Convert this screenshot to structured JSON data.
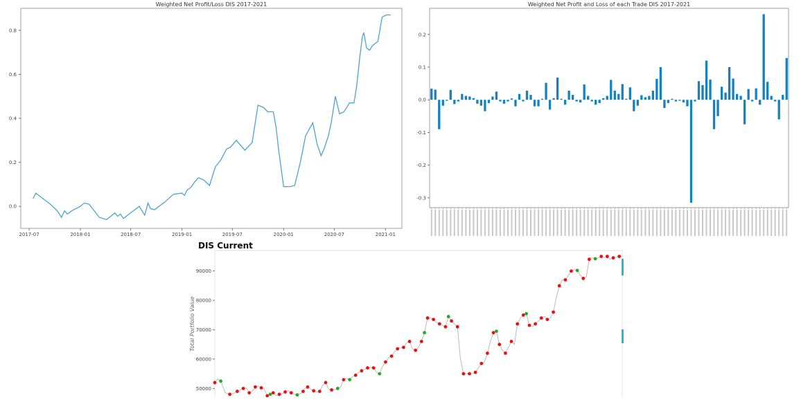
{
  "chart_data": [
    {
      "type": "line",
      "title": "Weighted Net Profit/Loss DIS 2017-2021",
      "xlabel": "",
      "ylabel": "",
      "x_ticks": [
        "2017-07",
        "2018-01",
        "2018-07",
        "2019-01",
        "2019-07",
        "2020-01",
        "2020-07",
        "2021-01"
      ],
      "y_ticks": [
        "0.0",
        "0.2",
        "0.4",
        "0.6",
        "0.8"
      ],
      "ylim": [
        -0.1,
        0.9
      ],
      "x": [
        "2017-07-15",
        "2017-07-25",
        "2017-08-15",
        "2017-09-15",
        "2017-10-10",
        "2017-10-25",
        "2017-11-05",
        "2017-11-15",
        "2017-12-01",
        "2018-01-01",
        "2018-01-15",
        "2018-02-01",
        "2018-02-20",
        "2018-03-10",
        "2018-04-05",
        "2018-04-20",
        "2018-05-05",
        "2018-05-15",
        "2018-05-25",
        "2018-06-05",
        "2018-06-20",
        "2018-07-10",
        "2018-08-01",
        "2018-08-20",
        "2018-09-01",
        "2018-09-10",
        "2018-09-25",
        "2018-10-10",
        "2018-11-01",
        "2018-12-01",
        "2019-01-01",
        "2019-01-10",
        "2019-01-20",
        "2019-02-01",
        "2019-02-15",
        "2019-03-01",
        "2019-03-20",
        "2019-04-10",
        "2019-05-01",
        "2019-05-20",
        "2019-06-10",
        "2019-06-25",
        "2019-07-15",
        "2019-08-15",
        "2019-09-10",
        "2019-10-01",
        "2019-10-20",
        "2019-11-05",
        "2019-11-25",
        "2019-12-05",
        "2019-12-15",
        "2020-01-01",
        "2020-01-15",
        "2020-01-25",
        "2020-02-10",
        "2020-03-01",
        "2020-03-20",
        "2020-04-15",
        "2020-05-01",
        "2020-05-15",
        "2020-05-25",
        "2020-06-10",
        "2020-06-20",
        "2020-07-05",
        "2020-07-20",
        "2020-08-05",
        "2020-08-25",
        "2020-09-10",
        "2020-09-20",
        "2020-10-01",
        "2020-10-10",
        "2020-10-15",
        "2020-10-25",
        "2020-11-05",
        "2020-11-15",
        "2020-12-05",
        "2020-12-20",
        "2021-01-05",
        "2021-01-20"
      ],
      "series": [
        {
          "values": [
            0.035,
            0.06,
            0.04,
            0.01,
            -0.02,
            -0.05,
            -0.02,
            -0.035,
            -0.02,
            0.0,
            0.015,
            0.01,
            -0.02,
            -0.05,
            -0.06,
            -0.045,
            -0.03,
            -0.045,
            -0.035,
            -0.055,
            -0.04,
            -0.02,
            0.0,
            -0.04,
            0.015,
            -0.01,
            -0.015,
            0.0,
            0.02,
            0.055,
            0.06,
            0.05,
            0.075,
            0.085,
            0.11,
            0.13,
            0.12,
            0.095,
            0.18,
            0.21,
            0.26,
            0.27,
            0.3,
            0.255,
            0.29,
            0.46,
            0.45,
            0.43,
            0.43,
            0.36,
            0.25,
            0.09,
            0.09,
            0.09,
            0.095,
            0.2,
            0.32,
            0.38,
            0.28,
            0.23,
            0.26,
            0.32,
            0.38,
            0.5,
            0.42,
            0.43,
            0.47,
            0.47,
            0.55,
            0.68,
            0.77,
            0.79,
            0.72,
            0.71,
            0.73,
            0.75,
            0.86,
            0.87,
            0.87
          ]
        }
      ],
      "color": "#4ba3d3"
    },
    {
      "type": "bar",
      "title": "Weighted Net Profit and Loss of each Trade DIS 2017-2021",
      "xlabel": "",
      "ylabel": "",
      "y_ticks": [
        "0.2",
        "0.1",
        "0.0",
        "-0.1",
        "-0.2",
        "-0.3"
      ],
      "ylim": [
        -0.33,
        0.28
      ],
      "values": [
        0.034,
        0.031,
        -0.09,
        -0.018,
        -0.003,
        0.03,
        -0.013,
        -0.005,
        0.018,
        0.012,
        0.01,
        0.005,
        -0.012,
        -0.018,
        -0.035,
        -0.01,
        0.01,
        0.025,
        -0.005,
        -0.012,
        -0.005,
        0.004,
        -0.02,
        0.018,
        -0.005,
        0.028,
        0.015,
        -0.02,
        -0.02,
        0.003,
        0.052,
        -0.03,
        0.005,
        0.068,
        0.003,
        -0.015,
        0.028,
        0.015,
        -0.005,
        -0.008,
        0.047,
        0.012,
        -0.005,
        -0.015,
        -0.01,
        0.005,
        0.012,
        0.061,
        0.028,
        0.018,
        0.048,
        0.003,
        0.038,
        -0.035,
        -0.018,
        0.014,
        0.008,
        0.012,
        0.028,
        0.064,
        0.1,
        -0.025,
        -0.01,
        0.003,
        -0.005,
        -0.003,
        -0.008,
        -0.02,
        -0.315,
        -0.005,
        0.057,
        0.045,
        0.12,
        0.062,
        -0.09,
        -0.05,
        0.04,
        0.022,
        0.1,
        0.065,
        0.018,
        0.012,
        -0.075,
        0.033,
        -0.005,
        0.035,
        -0.015,
        0.262,
        0.055,
        0.012,
        -0.005,
        -0.06,
        0.015,
        0.128
      ],
      "color": "#1482c1"
    },
    {
      "type": "line",
      "title": "DIS Current",
      "xlabel": "",
      "ylabel": "Total Portfolio Value",
      "y_ticks": [
        "90000",
        "80000",
        "70000",
        "60000",
        "50000"
      ],
      "ylim": [
        47000,
        97000
      ],
      "x_days": [
        0,
        10,
        20,
        35,
        50,
        60,
        75,
        85,
        95,
        105,
        115,
        125,
        135,
        145,
        155,
        165,
        175,
        185,
        195,
        205,
        215,
        225,
        235,
        245,
        255,
        265,
        275,
        285,
        295,
        300,
        310,
        320,
        330,
        340,
        350,
        360,
        370,
        380,
        390,
        400,
        410,
        420,
        430,
        440,
        450,
        460,
        470,
        480,
        490,
        500,
        510,
        520,
        530,
        540,
        550,
        560,
        570,
        580,
        590,
        600,
        610,
        620,
        630,
        640,
        650,
        660,
        670,
        680,
        690,
        700,
        710,
        720,
        730,
        740,
        750,
        760,
        770,
        780,
        790,
        800,
        810,
        820,
        830,
        840,
        850,
        860,
        870,
        880,
        890,
        900,
        910,
        920,
        930,
        940,
        950,
        960,
        970,
        980,
        990,
        1000,
        1010,
        1020,
        1030,
        1040,
        1050,
        1060,
        1070,
        1080,
        1090,
        1100,
        1110,
        1120,
        1130,
        1140,
        1150,
        1160,
        1170,
        1180,
        1190,
        1200,
        1210,
        1220,
        1230,
        1240,
        1250,
        1260,
        1270,
        1280,
        1290,
        1300,
        1310,
        1320,
        1330,
        1340,
        1350,
        1360
      ],
      "series": [
        {
          "name": "",
          "values": [
            52000,
            53200,
            52500,
            48500,
            48000,
            48200,
            49000,
            49500,
            50000,
            50200,
            48500,
            49000,
            50500,
            50800,
            50200,
            49800,
            47500,
            48000,
            48500,
            47500,
            48000,
            48200,
            48800,
            49200,
            48500,
            48000,
            47800,
            48200,
            49000,
            50000,
            50500,
            49800,
            49200,
            48800,
            49000,
            51000,
            52000,
            49800,
            49500,
            49500,
            50000,
            50500,
            53000,
            53500,
            53000,
            54000,
            54500,
            55500,
            56000,
            56500,
            57000,
            57200,
            57000,
            55500,
            55000,
            57500,
            59000,
            60500,
            61000,
            62500,
            63500,
            63800,
            64000,
            65500,
            66000,
            63500,
            63000,
            64000,
            66000,
            69000,
            74000,
            74000,
            73500,
            72500,
            72000,
            71500,
            71000,
            74500,
            73000,
            72000,
            71000,
            60000,
            55000,
            55000,
            55000,
            55000,
            55500,
            57000,
            58500,
            59000,
            62000,
            66000,
            69000,
            69500,
            65000,
            63000,
            62000,
            64000,
            66000,
            65000,
            72000,
            74000,
            75000,
            75500,
            71500,
            71000,
            72000,
            73000,
            74000,
            74500,
            73500,
            74000,
            76000,
            81000,
            85000,
            87000,
            87000,
            88500,
            90000,
            90500,
            90200,
            88500,
            87500,
            88000,
            94000,
            94500,
            94200,
            94500,
            95000,
            94500,
            95000,
            94000,
            94500,
            94800,
            95000,
            95000
          ],
          "color": "#bbbbbb"
        }
      ],
      "buy_marker_color": "#22aa22",
      "sell_marker_color": "#e81010"
    }
  ]
}
